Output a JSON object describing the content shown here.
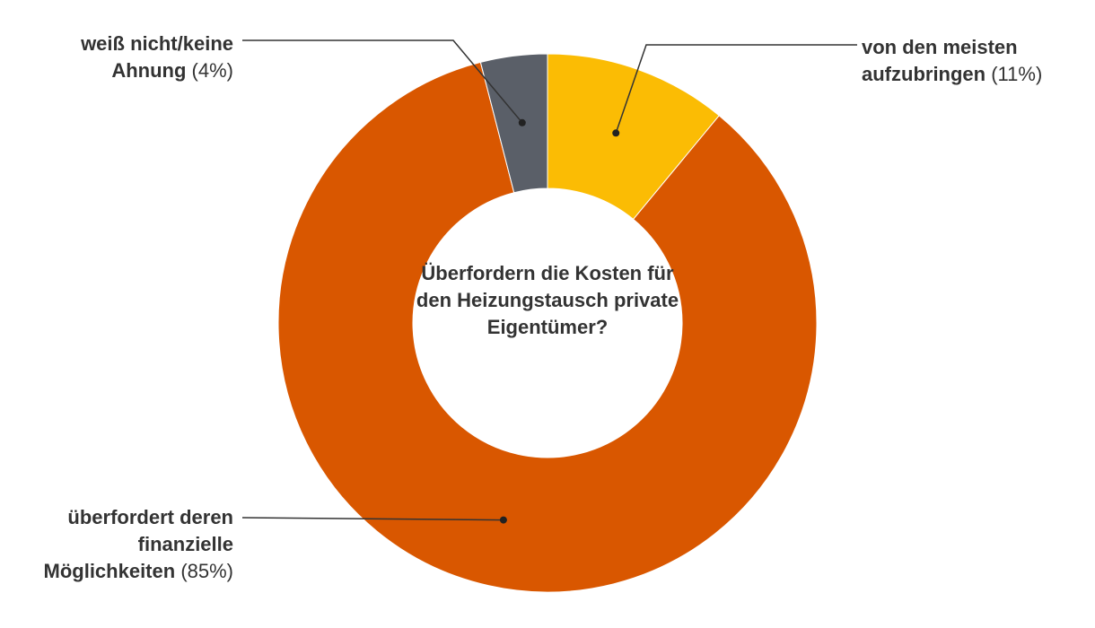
{
  "chart_data": {
    "type": "pie",
    "donut": true,
    "title": "Überfordern die Kosten für den Heizungstausch private Eigentümer?",
    "categories": [
      "von den meisten aufzubringen",
      "überfordert deren finanzielle Möglichkeiten",
      "weiß nicht/keine Ahnung"
    ],
    "values": [
      11,
      85,
      4
    ],
    "value_labels": [
      "(11%)",
      "(85%)",
      "(4%)"
    ],
    "colors": [
      "#fbbc04",
      "#d95700",
      "#5a5f68"
    ]
  }
}
